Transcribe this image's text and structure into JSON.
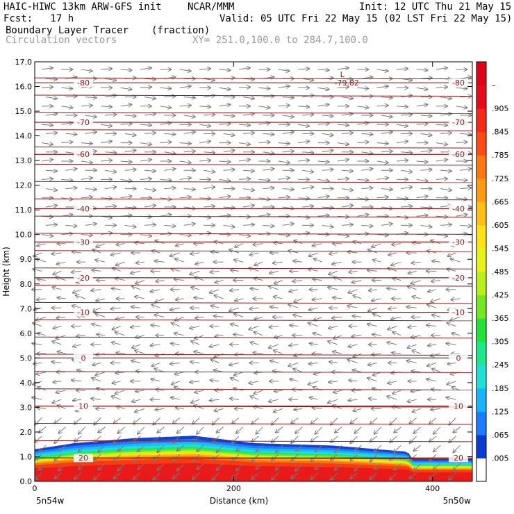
{
  "header": {
    "model": "HAIC-HIWC 13km ARW-GFS init",
    "org": "NCAR/MMM",
    "init": "Init: 12 UTC Thu 21 May 15",
    "fcst": "Fcst:   17 h",
    "valid": "Valid: 05 UTC Fri 22 May 15 (02 LST Fri 22 May 15)",
    "field": "Boundary Layer Tracer",
    "units": "(fraction)",
    "vectors": "Circulation vectors",
    "xy": "XY= 251.0,100.0 to 284.7,100.0"
  },
  "colors": {
    "contour": "#8b1a1a",
    "arrow": "#7a7a7a"
  },
  "chart_data": {
    "type": "heatmap",
    "title": "Boundary Layer Tracer",
    "xlabel": "Distance (km)",
    "ylabel": "Height (km)",
    "xlim": [
      0,
      440
    ],
    "ylim": [
      0,
      17
    ],
    "x_ticks": [
      "0",
      "200",
      "400"
    ],
    "x_tick_values": [
      0,
      200,
      400
    ],
    "y_ticks": [
      "0.0",
      "1.0",
      "2.0",
      "3.0",
      "4.0",
      "5.0",
      "6.0",
      "7.0",
      "8.0",
      "9.0",
      "10.0",
      "11.0",
      "12.0",
      "13.0",
      "14.0",
      "15.0",
      "16.0",
      "17.0"
    ],
    "left_endpoint": "5n54w",
    "right_endpoint": "5n50w",
    "colorbar": {
      "labels": [
        ".005",
        ".065",
        ".125",
        ".185",
        ".245",
        ".305",
        ".365",
        ".425",
        ".485",
        ".545",
        ".605",
        ".665",
        ".725",
        ".785",
        ".845",
        ".905",
        "–"
      ],
      "colors": [
        "#ffffff",
        "#0a3ad4",
        "#1a7cff",
        "#18b4ff",
        "#1ee0d6",
        "#1ae88a",
        "#22e23a",
        "#74e81e",
        "#b8f018",
        "#e6f218",
        "#ffe214",
        "#ffc012",
        "#ff9a12",
        "#ff7612",
        "#ff4a14",
        "#f82818",
        "#e80a1a",
        "#e00018"
      ]
    },
    "temperature_contours": [
      {
        "label": "20",
        "height": 0.95
      },
      {
        "label": "10",
        "height": 3.05
      },
      {
        "label": "0",
        "height": 5.0
      },
      {
        "label": "-10",
        "height": 6.85
      },
      {
        "label": "-20",
        "height": 8.25
      },
      {
        "label": "-30",
        "height": 9.7
      },
      {
        "label": "-40",
        "height": 11.05
      },
      {
        "label": "-60",
        "height": 13.25
      },
      {
        "label": "-70",
        "height": 14.55
      },
      {
        "label": "-80",
        "height": 16.15
      }
    ],
    "minimum_label": {
      "text": "-79.82",
      "marker": "L",
      "x": 307,
      "height": 16.55
    },
    "tracer_layer": [
      {
        "x": 0,
        "top": 1.3
      },
      {
        "x": 40,
        "top": 1.55
      },
      {
        "x": 100,
        "top": 1.75
      },
      {
        "x": 160,
        "top": 1.85
      },
      {
        "x": 220,
        "top": 1.55
      },
      {
        "x": 300,
        "top": 1.45
      },
      {
        "x": 375,
        "top": 1.2
      },
      {
        "x": 380,
        "top": 0.9
      },
      {
        "x": 440,
        "top": 0.9
      }
    ]
  }
}
